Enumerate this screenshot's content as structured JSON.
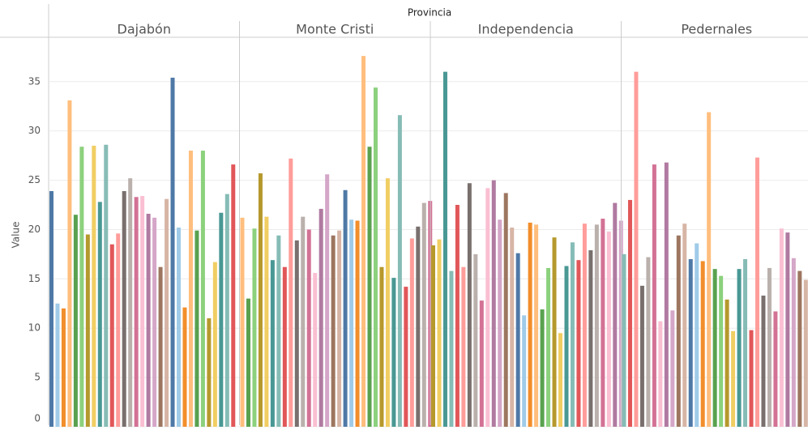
{
  "chart_data": {
    "type": "bar",
    "header": "Provincia",
    "ylabel": "Value",
    "ylim": [
      0,
      39.5
    ],
    "yticks": [
      0,
      5,
      10,
      15,
      20,
      25,
      30,
      35
    ],
    "grid": true,
    "colors": [
      "#4e79a7",
      "#a0cbe8",
      "#f28e2b",
      "#ffbe7d",
      "#59a14f",
      "#8cd17d",
      "#b6992d",
      "#f1ce63",
      "#499894",
      "#86bcb6",
      "#e15759",
      "#ff9d9a",
      "#79706e",
      "#bab0ac",
      "#d37295",
      "#fabfd2",
      "#b07aa1",
      "#d4a6c8",
      "#9d7660",
      "#d7b5a6"
    ],
    "panels": [
      {
        "name": "Dajabón",
        "values": [
          23.9,
          12.5,
          12.0,
          33.1,
          21.5,
          28.4,
          19.5,
          28.5,
          22.8,
          28.6,
          18.5,
          19.6,
          23.9,
          25.2,
          23.3,
          23.4,
          21.6,
          21.2,
          16.2,
          23.1,
          35.4,
          20.2,
          12.1,
          28.0,
          19.9,
          28.0,
          11.0,
          16.7,
          21.7,
          23.6,
          26.6
        ]
      },
      {
        "name": "Monte Cristi",
        "values": [
          21.2,
          13.0,
          20.1,
          25.7,
          21.3,
          16.9,
          19.4,
          16.2,
          27.2,
          18.9,
          21.3,
          20.0,
          15.6,
          22.1,
          25.6,
          19.4,
          19.9,
          24.0,
          21.0,
          20.9,
          37.6,
          28.4,
          34.4,
          16.2,
          25.2,
          15.1,
          31.6,
          14.2,
          19.1,
          20.3,
          22.7,
          22.9
        ]
      },
      {
        "name": "Independencia",
        "values": [
          18.4,
          19.0,
          36.0,
          15.8,
          22.5,
          16.2,
          24.7,
          17.5,
          12.8,
          24.2,
          25.0,
          21.0,
          23.7,
          20.2,
          17.6,
          11.3,
          20.7,
          20.5,
          11.9,
          16.1,
          19.2,
          9.5,
          16.3,
          18.7,
          16.9,
          20.6,
          17.9,
          20.5,
          21.1,
          19.8,
          22.7,
          20.9
        ]
      },
      {
        "name": "Pedernales",
        "values": [
          17.5,
          23.0,
          36.0,
          14.3,
          17.2,
          26.6,
          10.7,
          26.8,
          11.8,
          19.4,
          20.6,
          17.0,
          18.6,
          16.8,
          31.9,
          16.0,
          15.3,
          12.9,
          9.7,
          16.0,
          17.0,
          9.8,
          27.3,
          13.3,
          16.1,
          11.7,
          20.1,
          19.7,
          17.1,
          15.8,
          14.9
        ]
      }
    ]
  }
}
